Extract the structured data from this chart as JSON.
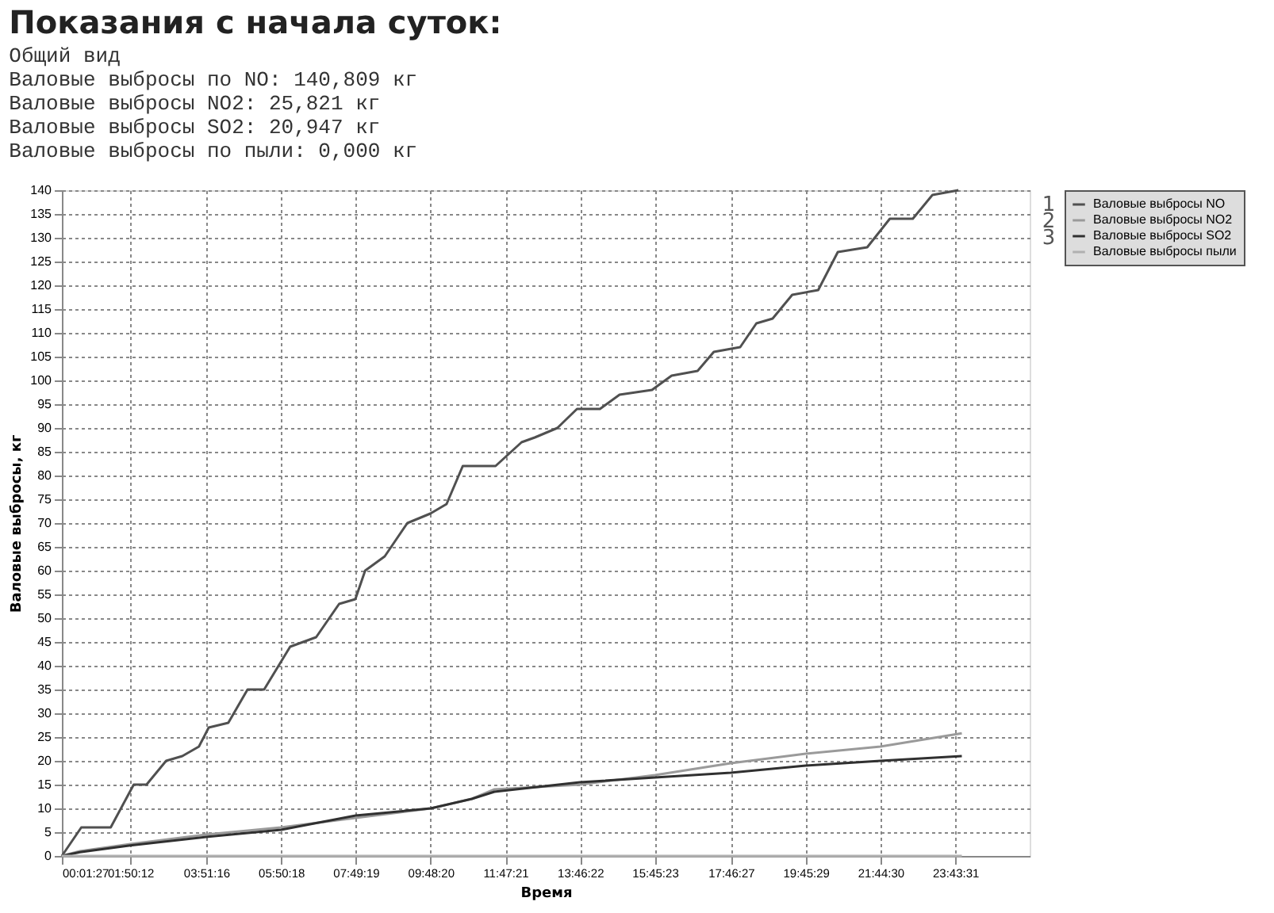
{
  "chart_data": {
    "type": "line",
    "title": "Показания с начала суток:",
    "annotations": [
      "Общий вид",
      "Валовые выбросы по NO:   140,809 кг",
      "Валовые выбросы NO2:      25,821 кг",
      "Валовые выбросы SO2:      20,947 кг",
      "Валовые выбросы по пыли:   0,000 кг",
      "1",
      "2",
      "3"
    ],
    "xlabel": "Время",
    "ylabel": "Валовые выбросы, кг",
    "x": [
      0.0242,
      0.54,
      1.32,
      1.93,
      2.27,
      2.79,
      3.22,
      3.66,
      3.92,
      4.44,
      4.95,
      5.39,
      6.08,
      6.77,
      7.38,
      7.81,
      8.07,
      8.59,
      9.19,
      9.8,
      10.23,
      10.66,
      11.53,
      12.22,
      12.57,
      13.17,
      13.69,
      14.3,
      14.82,
      15.68,
      16.2,
      16.89,
      17.32,
      18.02,
      18.45,
      18.88,
      19.4,
      20.09,
      20.61,
      21.39,
      21.99,
      22.6,
      23.12,
      23.81
    ],
    "series": [
      {
        "name": "Валовые выбросы NO",
        "color": "#505050",
        "values": [
          0,
          6,
          6,
          15,
          15,
          20,
          21,
          23,
          27,
          28,
          35,
          35,
          44,
          46,
          53,
          54,
          60,
          63,
          70,
          72,
          74,
          82,
          82,
          87,
          88,
          90,
          94,
          94,
          97,
          98,
          101,
          102,
          106,
          107,
          112,
          113,
          118,
          119,
          127,
          128,
          134,
          134,
          139,
          140
        ]
      },
      {
        "name": "Валовые выбросы NO2",
        "color": "#9a9a9a",
        "x": [
          0.0242,
          0.5,
          1.84,
          3.85,
          5.84,
          7.82,
          9.81,
          10.9,
          11.5,
          13.77,
          15.76,
          17.77,
          19.76,
          21.74,
          23.9
        ],
        "values": [
          0,
          1,
          2.5,
          4.5,
          6,
          8,
          10,
          12,
          14,
          15,
          17,
          19.5,
          21.5,
          23,
          25.8
        ]
      },
      {
        "name": "Валовые выбросы SO2",
        "color": "#303030",
        "x": [
          0.0242,
          0.5,
          1.84,
          3.85,
          5.84,
          7.82,
          9.81,
          10.9,
          11.5,
          13.77,
          15.76,
          17.77,
          19.76,
          21.74,
          23.9
        ],
        "values": [
          0,
          0.8,
          2.2,
          4,
          5.5,
          8.5,
          10,
          12,
          13.5,
          15.5,
          16.5,
          17.5,
          19,
          20,
          21
        ]
      },
      {
        "name": "Валовые выбросы пыли",
        "color": "#b0b0b0",
        "x": [
          0.0242,
          23.9
        ],
        "values": [
          0,
          0
        ]
      }
    ],
    "xlim": [
      0.0242,
      25.7
    ],
    "xticks": [
      {
        "value": 0.0242,
        "label": "00:01:27"
      },
      {
        "value": 1.8367,
        "label": "01:50:12"
      },
      {
        "value": 3.8544,
        "label": "03:51:16"
      },
      {
        "value": 5.8383,
        "label": "05:50:18"
      },
      {
        "value": 7.8219,
        "label": "07:49:19"
      },
      {
        "value": 9.8056,
        "label": "09:48:20"
      },
      {
        "value": 11.7892,
        "label": "11:47:21"
      },
      {
        "value": 13.7728,
        "label": "13:46:22"
      },
      {
        "value": 15.7564,
        "label": "15:45:23"
      },
      {
        "value": 17.7742,
        "label": "17:46:27"
      },
      {
        "value": 19.7581,
        "label": "19:45:29"
      },
      {
        "value": 21.7417,
        "label": "21:44:30"
      },
      {
        "value": 23.7253,
        "label": "23:43:31"
      }
    ],
    "ylim": [
      0,
      140
    ],
    "yticks": [
      0,
      5,
      10,
      15,
      20,
      25,
      30,
      35,
      40,
      45,
      50,
      55,
      60,
      65,
      70,
      75,
      80,
      85,
      90,
      95,
      100,
      105,
      110,
      115,
      120,
      125,
      130,
      135,
      140
    ],
    "grid": true,
    "legend": "right",
    "marker": "none",
    "line_style": "solid"
  }
}
